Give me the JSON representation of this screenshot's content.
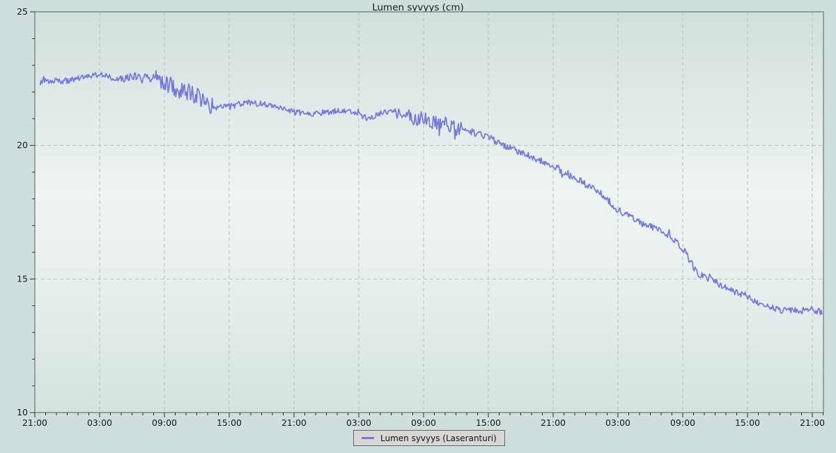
{
  "page": {
    "background": "#cfdfdd"
  },
  "chart_data": {
    "type": "line",
    "title": "Lumen syvyys (cm)",
    "legend": {
      "label": "Lumen syvyys (Laseranturi)",
      "position": "bottom-center"
    },
    "x_axis": {
      "unit": "time-of-day",
      "tick_labels": [
        "21:00",
        "03:00",
        "09:00",
        "15:00",
        "21:00",
        "03:00",
        "09:00",
        "15:00",
        "21:00",
        "03:00",
        "09:00",
        "15:00",
        "21:00"
      ],
      "major_step_hours": 6,
      "minor_step_hours": 1,
      "span_hours": 73
    },
    "y_axis": {
      "min": 10,
      "max": 25,
      "major_ticks": [
        25,
        20,
        15,
        10
      ],
      "minor_step": 1
    },
    "grid": {
      "vertical_every_hours": 6,
      "horizontal_at": [
        20,
        15
      ],
      "style": "dashed",
      "color": "#b3bdbb"
    },
    "colors": {
      "series": "#7477dd",
      "frame": "#5a5b5c",
      "tick": "#2a2a2a",
      "plot_bg_top": "#d2dfdd",
      "plot_bg_mid": "#eef4f2",
      "plot_bg_bottom": "#d4e2e0",
      "legend_bg": "#d7d7d5"
    },
    "series": [
      {
        "name": "Lumen syvyys (Laseranturi)",
        "color": "#7477dd",
        "points_unit": "[hours_from_axis_start, depth_cm]",
        "points": [
          [
            0.5,
            22.35
          ],
          [
            1,
            22.4
          ],
          [
            2,
            22.45
          ],
          [
            3,
            22.4
          ],
          [
            4,
            22.5
          ],
          [
            5,
            22.6
          ],
          [
            5.5,
            22.68
          ],
          [
            6,
            22.65
          ],
          [
            7,
            22.55
          ],
          [
            8,
            22.5
          ],
          [
            9,
            22.6
          ],
          [
            10,
            22.55
          ],
          [
            11,
            22.5
          ],
          [
            12,
            22.4
          ],
          [
            13,
            22.15
          ],
          [
            14,
            22.0
          ],
          [
            15,
            21.9
          ],
          [
            16,
            21.55
          ],
          [
            17,
            21.4
          ],
          [
            18,
            21.45
          ],
          [
            19,
            21.55
          ],
          [
            20,
            21.6
          ],
          [
            21,
            21.55
          ],
          [
            22,
            21.5
          ],
          [
            23,
            21.35
          ],
          [
            24,
            21.25
          ],
          [
            25,
            21.2
          ],
          [
            26,
            21.2
          ],
          [
            27,
            21.25
          ],
          [
            28,
            21.3
          ],
          [
            29,
            21.25
          ],
          [
            30,
            21.15
          ],
          [
            31,
            21.0
          ],
          [
            32,
            21.2
          ],
          [
            33,
            21.3
          ],
          [
            34,
            21.2
          ],
          [
            35,
            21.05
          ],
          [
            36,
            21.0
          ],
          [
            37,
            20.85
          ],
          [
            38,
            20.75
          ],
          [
            39,
            20.65
          ],
          [
            40,
            20.55
          ],
          [
            41,
            20.45
          ],
          [
            42,
            20.3
          ],
          [
            43,
            20.1
          ],
          [
            44,
            19.9
          ],
          [
            45,
            19.75
          ],
          [
            46,
            19.55
          ],
          [
            47,
            19.4
          ],
          [
            48,
            19.25
          ],
          [
            49,
            19.0
          ],
          [
            50,
            18.8
          ],
          [
            51,
            18.55
          ],
          [
            52,
            18.35
          ],
          [
            53,
            18.0
          ],
          [
            54,
            17.6
          ],
          [
            55,
            17.35
          ],
          [
            56,
            17.1
          ],
          [
            57,
            16.95
          ],
          [
            58,
            16.85
          ],
          [
            59,
            16.55
          ],
          [
            60,
            16.15
          ],
          [
            60.5,
            15.8
          ],
          [
            61,
            15.45
          ],
          [
            61.5,
            15.2
          ],
          [
            62,
            15.1
          ],
          [
            63,
            14.9
          ],
          [
            64,
            14.65
          ],
          [
            65,
            14.5
          ],
          [
            66,
            14.35
          ],
          [
            67,
            14.1
          ],
          [
            68,
            13.95
          ],
          [
            69,
            13.85
          ],
          [
            70,
            13.8
          ],
          [
            71,
            13.82
          ],
          [
            72,
            13.8
          ],
          [
            72.9,
            13.75
          ]
        ]
      }
    ],
    "noise": {
      "seed": 123457,
      "step_hours": 0.08,
      "base_amp": 0.1,
      "spike_prob": 0.02,
      "spike_mult": 2.0,
      "regions": [
        {
          "from": 0,
          "to": 8,
          "amp": 0.11
        },
        {
          "from": 8,
          "to": 11,
          "amp": 0.15
        },
        {
          "from": 11,
          "to": 16.5,
          "amp": 0.34
        },
        {
          "from": 16.5,
          "to": 22,
          "amp": 0.12
        },
        {
          "from": 22,
          "to": 33.5,
          "amp": 0.11
        },
        {
          "from": 33.5,
          "to": 39.5,
          "amp": 0.28
        },
        {
          "from": 39.5,
          "to": 47,
          "amp": 0.13
        },
        {
          "from": 47,
          "to": 56,
          "amp": 0.14
        },
        {
          "from": 56,
          "to": 69,
          "amp": 0.13
        },
        {
          "from": 69,
          "to": 73,
          "amp": 0.13
        }
      ]
    }
  }
}
